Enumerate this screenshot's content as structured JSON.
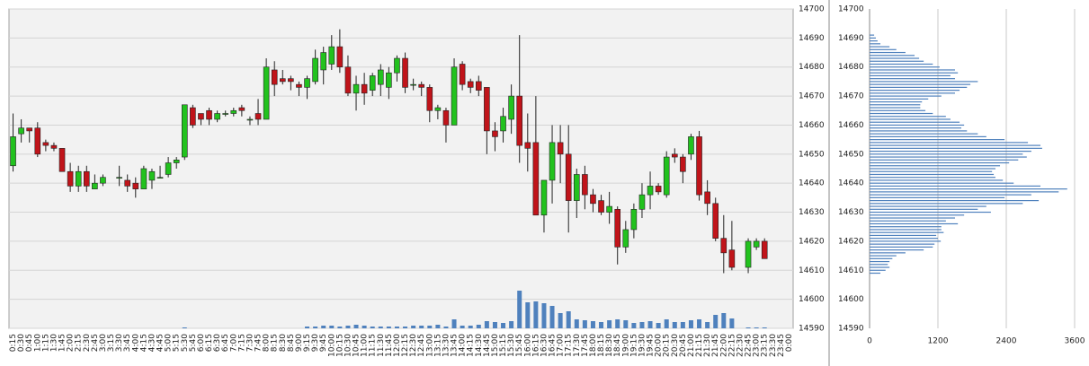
{
  "chart_data": [
    {
      "type": "candlestick",
      "categories": [
        "0:15",
        "0:30",
        "0:45",
        "1:00",
        "1:15",
        "1:30",
        "1:45",
        "2:00",
        "2:15",
        "2:30",
        "2:45",
        "3:00",
        "3:15",
        "3:30",
        "3:45",
        "4:00",
        "4:15",
        "4:30",
        "4:45",
        "5:00",
        "5:15",
        "5:30",
        "5:45",
        "6:00",
        "6:15",
        "6:30",
        "6:45",
        "7:00",
        "7:15",
        "7:30",
        "7:45",
        "8:00",
        "8:15",
        "8:30",
        "8:45",
        "9:00",
        "9:15",
        "9:30",
        "9:45",
        "10:00",
        "10:15",
        "10:30",
        "10:45",
        "11:00",
        "11:15",
        "11:30",
        "11:45",
        "12:00",
        "12:15",
        "12:30",
        "12:45",
        "13:00",
        "13:15",
        "13:30",
        "13:45",
        "14:00",
        "14:15",
        "14:30",
        "14:45",
        "15:00",
        "15:15",
        "15:30",
        "15:45",
        "16:00",
        "16:15",
        "16:30",
        "16:45",
        "17:00",
        "17:15",
        "17:30",
        "17:45",
        "18:00",
        "18:15",
        "18:30",
        "18:45",
        "19:00",
        "19:15",
        "19:30",
        "19:45",
        "20:00",
        "20:15",
        "20:30",
        "20:45",
        "21:00",
        "21:15",
        "21:30",
        "21:45",
        "22:00",
        "22:15",
        "22:30",
        "22:45",
        "23:00",
        "23:15",
        "23:30",
        "23:45",
        "0:00"
      ],
      "open": [
        14646,
        14657,
        14659,
        14659,
        14654,
        14653,
        14652,
        14644,
        14639,
        14644,
        14638,
        14640,
        null,
        14642,
        14641,
        14640,
        14638,
        14641,
        14642,
        14643,
        14647,
        14649,
        14666,
        14664,
        14665,
        14662,
        14664,
        14664,
        14666,
        14662,
        14664,
        14662,
        14679,
        14676,
        14676,
        14674,
        14673,
        14675,
        14679,
        14681,
        14687,
        14680,
        14671,
        14674,
        14672,
        14674,
        14673,
        14678,
        14683,
        14674,
        14674,
        14673,
        14665,
        14665,
        14660,
        14681,
        14675,
        14675,
        14673,
        14658,
        14658,
        14662,
        14670,
        14654,
        14654,
        14629,
        14641,
        14654,
        14650,
        14634,
        14643,
        14636,
        14634,
        14630,
        14631,
        14618,
        14624,
        14631,
        14636,
        14639,
        14636,
        14650,
        14649,
        14650,
        14656,
        14637,
        14633,
        14621,
        14617,
        null,
        14611,
        14618,
        14620,
        null,
        null,
        null
      ],
      "high": [
        14664,
        14662,
        14659,
        14661,
        14655,
        14654,
        14652,
        14647,
        14646,
        14646,
        14643,
        14643,
        null,
        14646,
        14643,
        14642,
        14646,
        14645,
        14646,
        14649,
        14649,
        14667,
        14667,
        14664,
        14666,
        14665,
        14665,
        14666,
        14667,
        14663,
        14669,
        14683,
        14682,
        14679,
        14677,
        14675,
        14677,
        14686,
        14687,
        14691,
        14693,
        14684,
        14677,
        14678,
        14678,
        14681,
        14680,
        14684,
        14685,
        14676,
        14675,
        14674,
        14667,
        14666,
        14683,
        14682,
        14676,
        14677,
        14673,
        14661,
        14666,
        14674,
        14691,
        14664,
        14670,
        14641,
        14660,
        14660,
        14660,
        14645,
        14646,
        14638,
        14636,
        14637,
        14632,
        14627,
        14633,
        14640,
        14644,
        14640,
        14651,
        14652,
        14650,
        14657,
        14658,
        14641,
        14635,
        14629,
        14627,
        null,
        14621,
        14621,
        14621,
        null,
        null,
        null
      ],
      "low": [
        14644,
        14654,
        14654,
        14649,
        14651,
        14651,
        14644,
        14637,
        14637,
        14637,
        14638,
        14639,
        null,
        14639,
        14637,
        14635,
        14638,
        14638,
        14642,
        14642,
        14645,
        14648,
        14659,
        14660,
        14660,
        14661,
        14663,
        14663,
        14663,
        14660,
        14660,
        14662,
        14670,
        14674,
        14672,
        14670,
        14669,
        14674,
        14674,
        14679,
        14678,
        14670,
        14665,
        14667,
        14670,
        14670,
        14669,
        14675,
        14671,
        14672,
        14670,
        14661,
        14662,
        14654,
        14660,
        14672,
        14671,
        14670,
        14650,
        14651,
        14654,
        14657,
        14647,
        14644,
        14629,
        14623,
        14633,
        14640,
        14623,
        14628,
        14631,
        14630,
        14629,
        14626,
        14612,
        14616,
        14621,
        14628,
        14631,
        14636,
        14635,
        14647,
        14640,
        14648,
        14634,
        14629,
        14620,
        14609,
        14610,
        null,
        14609,
        14617,
        14614,
        null,
        null,
        null
      ],
      "close": [
        14656,
        14659,
        14658,
        14650,
        14653,
        14652,
        14644,
        14639,
        14644,
        14639,
        14640,
        14642,
        null,
        14642,
        14639,
        14638,
        14645,
        14644,
        14642,
        14647,
        14648,
        14667,
        14660,
        14662,
        14662,
        14664,
        14664,
        14665,
        14665,
        14662,
        14662,
        14680,
        14674,
        14675,
        14675,
        14673,
        14676,
        14683,
        14685,
        14687,
        14680,
        14671,
        14674,
        14671,
        14677,
        14679,
        14678,
        14683,
        14673,
        14674,
        14673,
        14665,
        14666,
        14660,
        14680,
        14674,
        14673,
        14672,
        14658,
        14656,
        14663,
        14670,
        14653,
        14652,
        14629,
        14641,
        14654,
        14650,
        14634,
        14643,
        14636,
        14633,
        14630,
        14632,
        14618,
        14624,
        14631,
        14636,
        14639,
        14637,
        14649,
        14649,
        14644,
        14656,
        14636,
        14633,
        14621,
        14616,
        14611,
        null,
        14620,
        14620,
        14614,
        null,
        null,
        null
      ],
      "volume": [
        0,
        0,
        0,
        0,
        0,
        0,
        0,
        0,
        0,
        0,
        0,
        0,
        null,
        0,
        0,
        0,
        0,
        0,
        0,
        0,
        0,
        1,
        0,
        0,
        0,
        0,
        0,
        0,
        0,
        0,
        0,
        0,
        0,
        0,
        0,
        0,
        2,
        2,
        3,
        3,
        2,
        3,
        4,
        3,
        2,
        2,
        2,
        2,
        2,
        3,
        3,
        3,
        4,
        2,
        10,
        3,
        3,
        4,
        8,
        7,
        6,
        8,
        42,
        29,
        30,
        28,
        25,
        17,
        19,
        10,
        9,
        8,
        7,
        9,
        10,
        9,
        6,
        7,
        8,
        6,
        10,
        7,
        7,
        9,
        10,
        7,
        15,
        17,
        11,
        null,
        1,
        1,
        1,
        null,
        null,
        null
      ],
      "up_color": "#22c21e",
      "down_color": "#c0141a",
      "volume_color": "#4f81bd",
      "ylim": [
        14590,
        14700
      ],
      "yticks": [
        14590,
        14600,
        14610,
        14620,
        14630,
        14640,
        14650,
        14660,
        14670,
        14680,
        14690,
        14700
      ],
      "grid": true
    },
    {
      "type": "barh",
      "y": [
        14691,
        14690,
        14689,
        14688,
        14687,
        14686,
        14685,
        14684,
        14683,
        14682,
        14681,
        14680,
        14679,
        14678,
        14677,
        14676,
        14675,
        14674,
        14673,
        14672,
        14671,
        14670,
        14669,
        14668,
        14667,
        14666,
        14665,
        14664,
        14663,
        14662,
        14661,
        14660,
        14659,
        14658,
        14657,
        14656,
        14655,
        14654,
        14653,
        14652,
        14651,
        14650,
        14649,
        14648,
        14647,
        14646,
        14645,
        14644,
        14643,
        14642,
        14641,
        14640,
        14639,
        14638,
        14637,
        14636,
        14635,
        14634,
        14633,
        14632,
        14631,
        14630,
        14629,
        14628,
        14627,
        14626,
        14625,
        14624,
        14623,
        14622,
        14621,
        14620,
        14619,
        14618,
        14617,
        14616,
        14615,
        14614,
        14613,
        14612,
        14611,
        14610,
        14609
      ],
      "values": [
        80,
        110,
        140,
        190,
        350,
        470,
        630,
        790,
        870,
        950,
        1110,
        1230,
        1500,
        1550,
        1420,
        1500,
        1900,
        1770,
        1710,
        1580,
        1500,
        1260,
        1030,
        920,
        890,
        890,
        980,
        1110,
        1340,
        1420,
        1580,
        1660,
        1610,
        1710,
        1900,
        2050,
        2370,
        2780,
        3000,
        3030,
        2840,
        2690,
        2760,
        2610,
        2450,
        2290,
        2210,
        2150,
        2180,
        2210,
        2340,
        2530,
        3000,
        3470,
        3320,
        2840,
        2370,
        2970,
        2690,
        2050,
        1900,
        2130,
        1660,
        1500,
        1340,
        1550,
        1260,
        1260,
        1300,
        1170,
        1200,
        1250,
        1140,
        1110,
        950,
        630,
        470,
        400,
        350,
        320,
        350,
        280,
        190
      ],
      "color": "#4f81bd",
      "xlim": [
        0,
        3600
      ],
      "xticks": [
        0,
        1200,
        2400,
        3600
      ],
      "ylim": [
        14590,
        14700
      ],
      "yticks": [
        14590,
        14600,
        14610,
        14620,
        14630,
        14640,
        14650,
        14660,
        14670,
        14680,
        14690,
        14700
      ],
      "grid": true
    }
  ]
}
